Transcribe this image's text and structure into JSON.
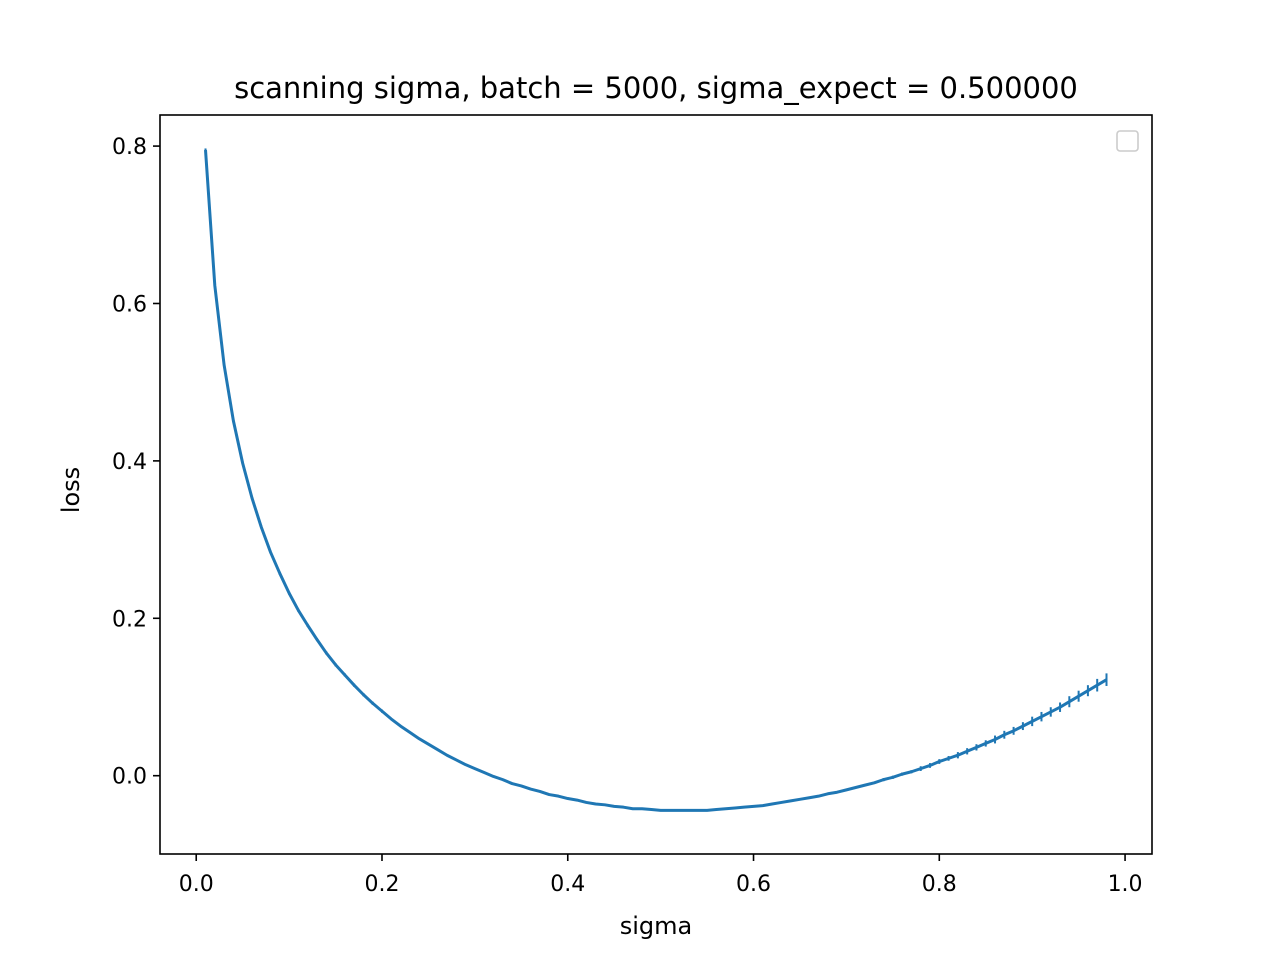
{
  "chart_data": {
    "type": "line",
    "title": "scanning sigma, batch = 5000, sigma_expect = 0.500000",
    "xlabel": "sigma",
    "ylabel": "loss",
    "xlim": [
      -0.039,
      1.029
    ],
    "ylim": [
      -0.0995,
      0.8395
    ],
    "xticks": [
      0.0,
      0.2,
      0.4,
      0.6,
      0.8,
      1.0
    ],
    "xtick_labels": [
      "0.0",
      "0.2",
      "0.4",
      "0.6",
      "0.8",
      "1.0"
    ],
    "yticks": [
      0.0,
      0.2,
      0.4,
      0.6,
      0.8
    ],
    "ytick_labels": [
      "0.0",
      "0.2",
      "0.4",
      "0.6",
      "0.8"
    ],
    "legend": "top-right, empty",
    "grid": false,
    "color": "#1f77b4",
    "series": [
      {
        "x": [
          0.01,
          0.02,
          0.03,
          0.04,
          0.05,
          0.06,
          0.07,
          0.08,
          0.09,
          0.1,
          0.11,
          0.12,
          0.13,
          0.14,
          0.15,
          0.16,
          0.17,
          0.18,
          0.19,
          0.2,
          0.21,
          0.22,
          0.23,
          0.24,
          0.25,
          0.26,
          0.27,
          0.28,
          0.29,
          0.3,
          0.31,
          0.32,
          0.33,
          0.34,
          0.35,
          0.36,
          0.37,
          0.38,
          0.39,
          0.4,
          0.41,
          0.42,
          0.43,
          0.44,
          0.45,
          0.46,
          0.47,
          0.48,
          0.49,
          0.5,
          0.51,
          0.52,
          0.53,
          0.54,
          0.55,
          0.56,
          0.57,
          0.58,
          0.59,
          0.6,
          0.61,
          0.62,
          0.63,
          0.64,
          0.65,
          0.66,
          0.67,
          0.68,
          0.69,
          0.7,
          0.71,
          0.72,
          0.73,
          0.74,
          0.75,
          0.76,
          0.77,
          0.78,
          0.79,
          0.8,
          0.81,
          0.82,
          0.83,
          0.84,
          0.85,
          0.86,
          0.87,
          0.88,
          0.89,
          0.9,
          0.91,
          0.92,
          0.93,
          0.94,
          0.95,
          0.96,
          0.97,
          0.98
        ],
        "y": [
          0.795,
          0.623,
          0.522,
          0.451,
          0.397,
          0.353,
          0.316,
          0.284,
          0.257,
          0.232,
          0.21,
          0.191,
          0.173,
          0.156,
          0.141,
          0.128,
          0.115,
          0.103,
          0.092,
          0.082,
          0.072,
          0.063,
          0.055,
          0.047,
          0.04,
          0.033,
          0.026,
          0.02,
          0.014,
          0.009,
          0.004,
          -0.001,
          -0.005,
          -0.01,
          -0.013,
          -0.017,
          -0.02,
          -0.024,
          -0.026,
          -0.029,
          -0.031,
          -0.034,
          -0.036,
          -0.037,
          -0.039,
          -0.04,
          -0.042,
          -0.042,
          -0.043,
          -0.044,
          -0.044,
          -0.044,
          -0.044,
          -0.044,
          -0.044,
          -0.043,
          -0.042,
          -0.041,
          -0.04,
          -0.039,
          -0.038,
          -0.036,
          -0.034,
          -0.032,
          -0.03,
          -0.028,
          -0.026,
          -0.023,
          -0.021,
          -0.018,
          -0.015,
          -0.012,
          -0.009,
          -0.005,
          -0.002,
          0.002,
          0.005,
          0.009,
          0.013,
          0.018,
          0.022,
          0.026,
          0.031,
          0.036,
          0.041,
          0.046,
          0.052,
          0.057,
          0.063,
          0.069,
          0.075,
          0.081,
          0.087,
          0.094,
          0.101,
          0.108,
          0.115,
          0.122
        ],
        "yerr": [
          0.002,
          0.002,
          0.002,
          0.002,
          0.002,
          0.002,
          0.002,
          0.002,
          0.002,
          0.002,
          0.002,
          0.002,
          0.002,
          0.002,
          0.002,
          0.002,
          0.002,
          0.002,
          0.002,
          0.002,
          0.001,
          0.001,
          0.001,
          0.001,
          0.001,
          0.001,
          0.001,
          0.001,
          0.001,
          0.001,
          0.001,
          0.001,
          0.001,
          0.001,
          0.001,
          0.001,
          0.001,
          0.001,
          0.001,
          0.001,
          0.001,
          0.001,
          0.001,
          0.001,
          0.001,
          0.001,
          0.001,
          0.001,
          0.001,
          0.001,
          0.001,
          0.001,
          0.001,
          0.001,
          0.001,
          0.001,
          0.001,
          0.001,
          0.001,
          0.001,
          0.001,
          0.001,
          0.001,
          0.001,
          0.001,
          0.001,
          0.001,
          0.001,
          0.001,
          0.001,
          0.001,
          0.001,
          0.001,
          0.002,
          0.002,
          0.002,
          0.002,
          0.003,
          0.003,
          0.003,
          0.003,
          0.004,
          0.004,
          0.004,
          0.004,
          0.005,
          0.005,
          0.005,
          0.005,
          0.006,
          0.006,
          0.006,
          0.006,
          0.007,
          0.007,
          0.007,
          0.008,
          0.008
        ]
      }
    ]
  }
}
